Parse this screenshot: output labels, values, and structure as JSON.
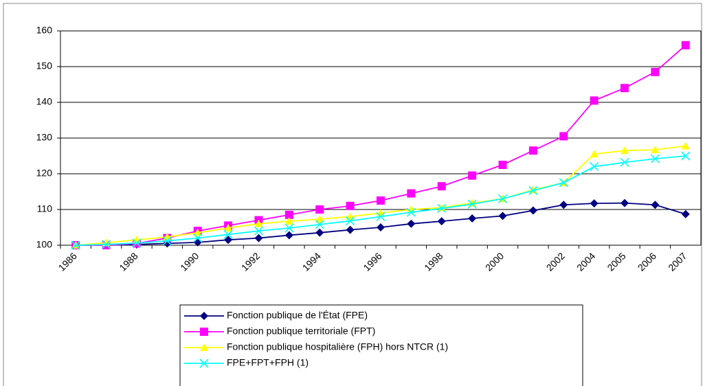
{
  "chart_data": {
    "type": "line",
    "categories": [
      "1986",
      null,
      "1988",
      null,
      "1990",
      null,
      "1992",
      null,
      "1994",
      null,
      "1996",
      null,
      "1998",
      null,
      "2000",
      null,
      "2002",
      "2004",
      "2005",
      "2006",
      "2007"
    ],
    "ylim": [
      100,
      160
    ],
    "yticks": [
      100,
      110,
      120,
      130,
      140,
      150,
      160
    ],
    "grid": true,
    "series": [
      {
        "name": "Fonction publique de l'État (FPE)",
        "color": "#000080",
        "marker": "diamond",
        "values": [
          100,
          100,
          100.2,
          100.5,
          100.8,
          101.5,
          102,
          102.8,
          103.5,
          104.3,
          105,
          106,
          106.7,
          107.5,
          108.2,
          109.7,
          111.3,
          111.7,
          111.8,
          111.3,
          108.7
        ]
      },
      {
        "name": "Fonction publique territoriale (FPT)",
        "color": "#ff00ff",
        "marker": "square",
        "values": [
          100,
          100,
          100.5,
          102,
          104,
          105.5,
          107,
          108.5,
          110,
          111,
          112.5,
          114.5,
          116.5,
          119.5,
          122.5,
          126.5,
          130.5,
          140.5,
          144,
          148.5,
          156
        ]
      },
      {
        "name": "Fonction publique hospitalière (FPH) hors NTCR  (1)",
        "color": "#ffff00",
        "marker": "triangle",
        "values": [
          100,
          100.7,
          101.5,
          102.3,
          103.5,
          104.8,
          106,
          106.7,
          107.3,
          108,
          109,
          110,
          110.5,
          111.8,
          113,
          115.5,
          117.5,
          125.5,
          126.5,
          126.7,
          127.8
        ]
      },
      {
        "name": "FPE+FPT+FPH (1)",
        "color": "#00ffff",
        "marker": "x",
        "values": [
          100,
          100.2,
          100.6,
          101.2,
          102,
          103,
          104,
          104.8,
          105.8,
          106.8,
          108,
          109.2,
          110.3,
          111.5,
          113,
          115.3,
          117.5,
          122,
          123.2,
          124.2,
          125
        ]
      }
    ]
  }
}
